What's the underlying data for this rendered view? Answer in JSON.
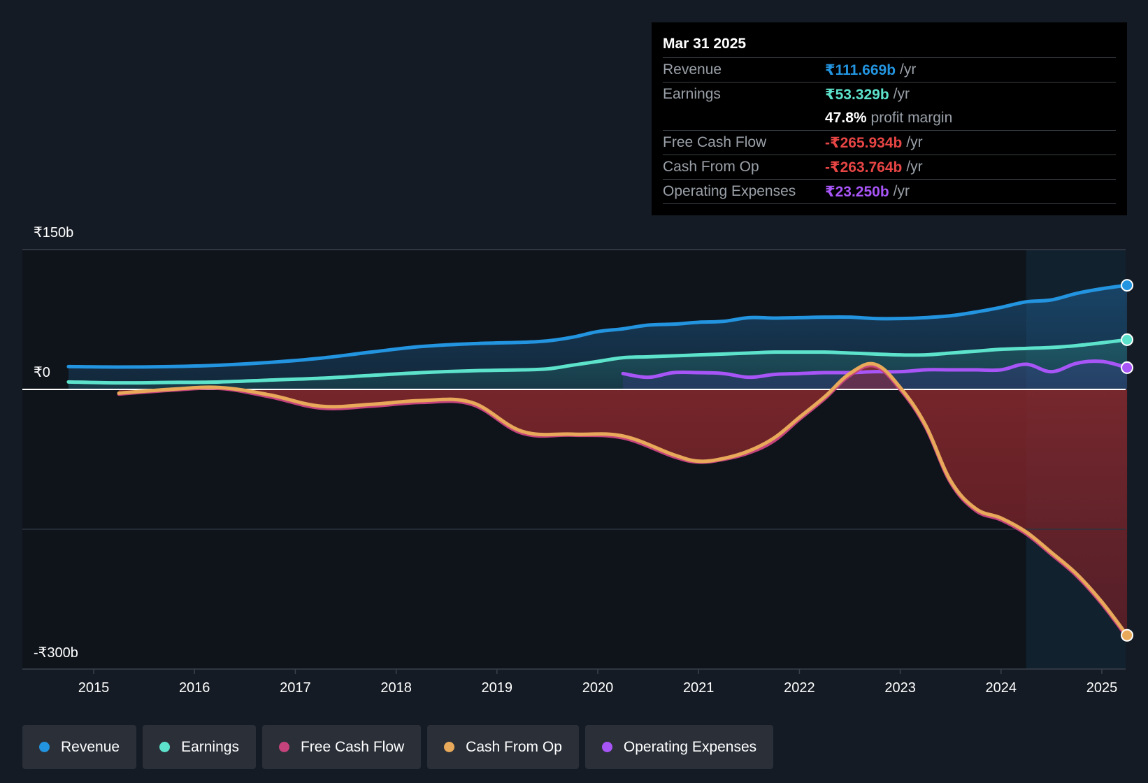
{
  "tooltip": {
    "date": "Mar 31 2025",
    "rows": {
      "revenue": {
        "label": "Revenue",
        "value": "₹111.669b",
        "unit": "/yr",
        "color": "#2394df"
      },
      "earnings": {
        "label": "Earnings",
        "value": "₹53.329b",
        "unit": "/yr",
        "color": "#5de3cc"
      },
      "margin": {
        "value": "47.8%",
        "text": "profit margin"
      },
      "fcf": {
        "label": "Free Cash Flow",
        "value": "-₹265.934b",
        "unit": "/yr",
        "color": "#e84545"
      },
      "cfo": {
        "label": "Cash From Op",
        "value": "-₹263.764b",
        "unit": "/yr",
        "color": "#e84545"
      },
      "opex": {
        "label": "Operating Expenses",
        "value": "₹23.250b",
        "unit": "/yr",
        "color": "#a855f7"
      }
    }
  },
  "legend": [
    {
      "label": "Revenue",
      "color": "#2394df"
    },
    {
      "label": "Earnings",
      "color": "#5de3cc"
    },
    {
      "label": "Free Cash Flow",
      "color": "#c4437c"
    },
    {
      "label": "Cash From Op",
      "color": "#e8a95a"
    },
    {
      "label": "Operating Expenses",
      "color": "#a855f7"
    }
  ],
  "chart_data": {
    "type": "line",
    "title": "",
    "xlabel": "",
    "ylabel": "",
    "y_labels": [
      "₹150b",
      "₹0",
      "-₹300b"
    ],
    "ylim": [
      -300,
      150
    ],
    "xlim": [
      2014.3,
      2025.25
    ],
    "x_ticks": [
      2015,
      2016,
      2017,
      2018,
      2019,
      2020,
      2021,
      2022,
      2023,
      2024,
      2025
    ],
    "x_tick_labels": [
      "2015",
      "2016",
      "2017",
      "2018",
      "2019",
      "2020",
      "2021",
      "2022",
      "2023",
      "2024",
      "2025"
    ],
    "forecast_start": 2024.25,
    "series": [
      {
        "name": "Revenue",
        "color": "#2394df",
        "x": [
          2014.75,
          2015.25,
          2015.75,
          2016.25,
          2016.75,
          2017.25,
          2017.75,
          2018.25,
          2018.75,
          2019.25,
          2019.5,
          2019.75,
          2020.0,
          2020.25,
          2020.5,
          2020.75,
          2021.0,
          2021.25,
          2021.5,
          2021.75,
          2022.0,
          2022.25,
          2022.5,
          2022.75,
          2023.0,
          2023.25,
          2023.5,
          2023.75,
          2024.0,
          2024.25,
          2024.5,
          2024.75,
          2025.0,
          2025.25
        ],
        "values": [
          24.5,
          24,
          24.5,
          26,
          29,
          33.5,
          40,
          46,
          49,
          50.5,
          52,
          56,
          62,
          65,
          69,
          70,
          72,
          73,
          77,
          76.5,
          77,
          77.5,
          77.5,
          76,
          76,
          77,
          79,
          83,
          88,
          94,
          96,
          103,
          108,
          111.7
        ]
      },
      {
        "name": "Earnings",
        "color": "#5de3cc",
        "x": [
          2014.75,
          2015.25,
          2015.75,
          2016.25,
          2016.75,
          2017.25,
          2017.75,
          2018.25,
          2018.75,
          2019.25,
          2019.5,
          2019.75,
          2020.0,
          2020.25,
          2020.5,
          2020.75,
          2021.0,
          2021.25,
          2021.5,
          2021.75,
          2022.0,
          2022.25,
          2022.5,
          2022.75,
          2023.0,
          2023.25,
          2023.5,
          2023.75,
          2024.0,
          2024.25,
          2024.5,
          2024.75,
          2025.0,
          2025.25
        ],
        "values": [
          8,
          7,
          7.5,
          8,
          10,
          12,
          15,
          18,
          20,
          21,
          22,
          26,
          30,
          34,
          35,
          36,
          37,
          38,
          39,
          40,
          40,
          40,
          39,
          38,
          37,
          37,
          39,
          41,
          43,
          44,
          45,
          47,
          50,
          53.3
        ]
      },
      {
        "name": "Free Cash Flow",
        "color": "#c4437c",
        "x": [
          2015.25,
          2015.75,
          2016.25,
          2016.75,
          2017.25,
          2017.75,
          2018.25,
          2018.75,
          2019.25,
          2019.75,
          2020.25,
          2020.75,
          2021.0,
          2021.25,
          2021.5,
          2021.75,
          2022.0,
          2022.25,
          2022.5,
          2022.75,
          2023.0,
          2023.25,
          2023.5,
          2023.75,
          2024.0,
          2024.25,
          2024.5,
          2024.75,
          2025.0,
          2025.25
        ],
        "values": [
          -5,
          -1,
          1,
          -8,
          -20,
          -18,
          -14,
          -16,
          -47,
          -49,
          -52,
          -72,
          -78,
          -75,
          -68,
          -55,
          -32,
          -10,
          15,
          25,
          0,
          -40,
          -100,
          -130,
          -140,
          -155,
          -177,
          -200,
          -230,
          -265.9
        ]
      },
      {
        "name": "Cash From Op",
        "color": "#e8a95a",
        "x": [
          2015.25,
          2015.75,
          2016.25,
          2016.75,
          2017.25,
          2017.75,
          2018.25,
          2018.75,
          2019.25,
          2019.75,
          2020.25,
          2020.75,
          2021.0,
          2021.25,
          2021.5,
          2021.75,
          2022.0,
          2022.25,
          2022.5,
          2022.75,
          2023.0,
          2023.25,
          2023.5,
          2023.75,
          2024.0,
          2024.25,
          2024.5,
          2024.75,
          2025.0,
          2025.25
        ],
        "values": [
          -4,
          0,
          2,
          -6,
          -18,
          -16,
          -12,
          -14,
          -45,
          -48,
          -50,
          -70,
          -77,
          -74,
          -66,
          -52,
          -30,
          -8,
          17,
          27,
          2,
          -38,
          -98,
          -128,
          -138,
          -153,
          -175,
          -198,
          -228,
          -263.8
        ]
      },
      {
        "name": "Operating Expenses",
        "color": "#a855f7",
        "x": [
          2020.25,
          2020.5,
          2020.75,
          2021.0,
          2021.25,
          2021.5,
          2021.75,
          2022.0,
          2022.25,
          2022.5,
          2022.75,
          2023.0,
          2023.25,
          2023.5,
          2023.75,
          2024.0,
          2024.25,
          2024.5,
          2024.75,
          2025.0,
          2025.25
        ],
        "values": [
          17,
          13,
          18,
          18,
          17,
          13,
          16,
          17,
          18,
          18,
          19,
          19,
          21,
          21,
          21,
          21,
          27,
          19,
          28,
          30,
          23.3
        ]
      }
    ]
  }
}
